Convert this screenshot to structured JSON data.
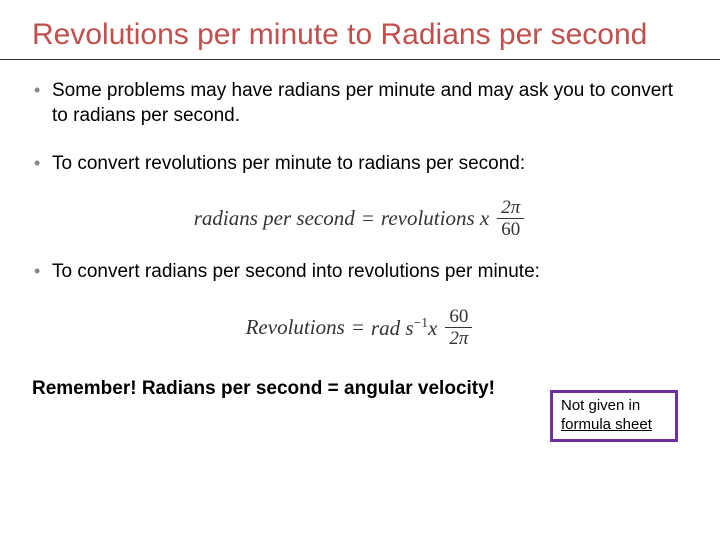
{
  "title": "Revolutions per minute to Radians per second",
  "title_color": "#c0504d",
  "underline_color": "#333333",
  "bullets": {
    "b1": "Some problems may have radians per minute and may ask you to convert to radians per second.",
    "b2": "To convert revolutions per minute to radians per second:",
    "b3": "To convert radians per second into revolutions per minute:"
  },
  "formula1": {
    "lhs": "radians per second",
    "eq": " = ",
    "rhs_text": "revolutions x",
    "frac_num": "2π",
    "frac_den": "60"
  },
  "formula2": {
    "lhs": "Revolutions",
    "eq": " = ",
    "rhs_text_a": "rad s",
    "rhs_exp": "−1",
    "rhs_text_b": "x",
    "frac_num": "60",
    "frac_den": "2π"
  },
  "callout": {
    "line1": "Not given in",
    "line2": "formula sheet",
    "border_color": "#7030a0",
    "font_size_pt": 11
  },
  "remember": "Remember! Radians per second = angular velocity!",
  "fonts": {
    "title_pt": 30,
    "body_pt": 19,
    "formula_pt": 21
  },
  "background_color": "#ffffff"
}
